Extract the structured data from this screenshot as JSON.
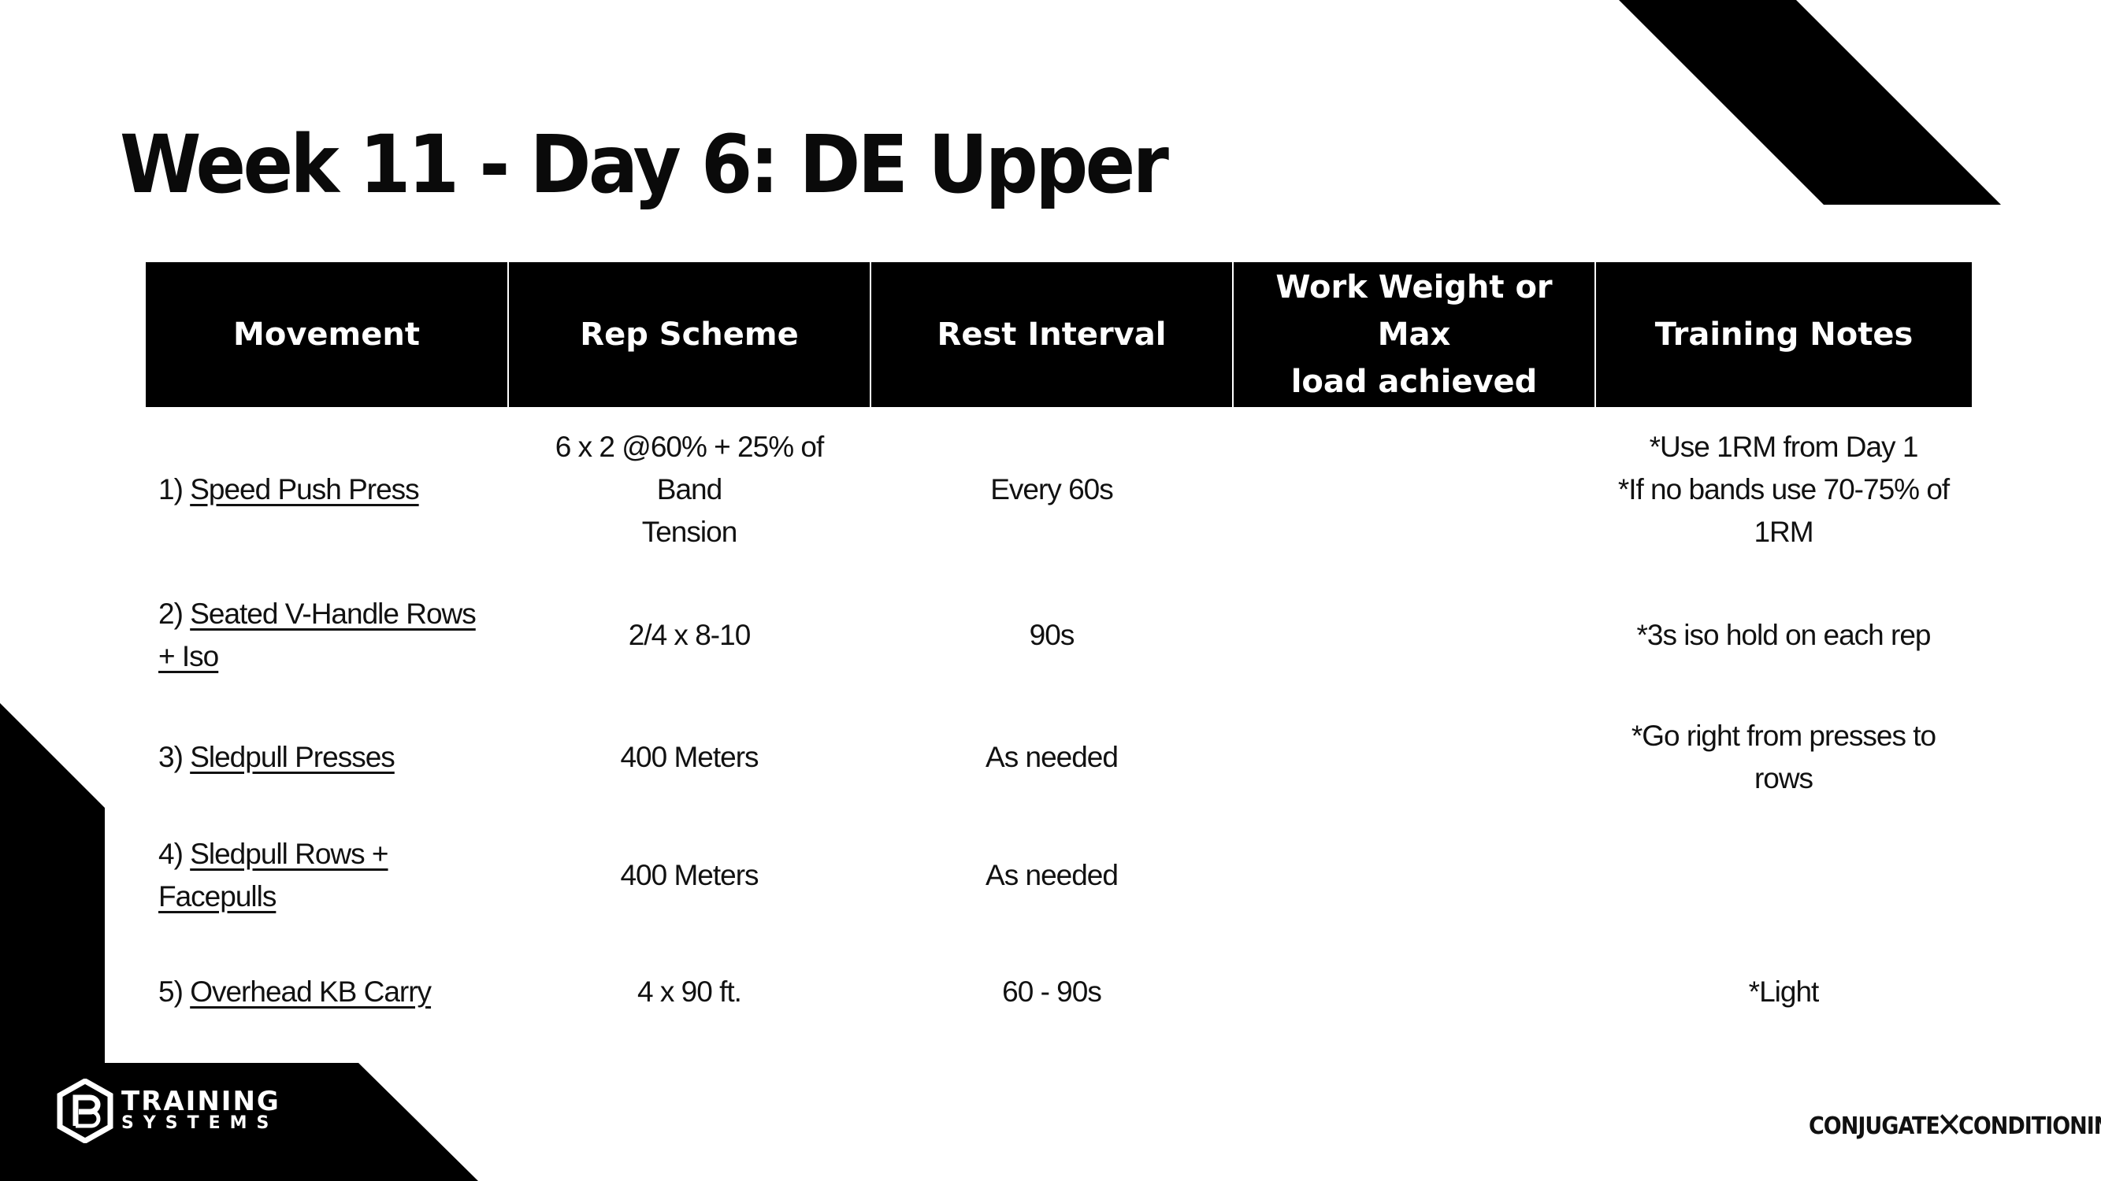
{
  "title": "Week 11 - Day 6: DE Upper",
  "table": {
    "headers": {
      "movement": "Movement",
      "rep_scheme": "Rep Scheme",
      "rest_interval": "Rest Interval",
      "work_weight_line1": "Work Weight or Max",
      "work_weight_line2": "load achieved",
      "training_notes": "Training Notes"
    },
    "rows": [
      {
        "num": "1)",
        "movement": "Speed Push Press",
        "rep_line1": "6 x 2 @60% + 25% of Band",
        "rep_line2": "Tension",
        "rest": "Every 60s",
        "weight": "",
        "note_line1": "*Use 1RM from Day 1",
        "note_line2": "*If no bands use 70-75% of 1RM"
      },
      {
        "num": "2)",
        "movement": "Seated V-Handle Rows + Iso",
        "rep_line1": "2/4 x 8-10",
        "rep_line2": "",
        "rest": "90s",
        "weight": "",
        "note_line1": "*3s iso hold on each rep",
        "note_line2": ""
      },
      {
        "num": "3)",
        "movement": "Sledpull Presses",
        "rep_line1": "400 Meters",
        "rep_line2": "",
        "rest": "As needed",
        "weight": "",
        "note_line1": "*Go right from presses to rows",
        "note_line2": ""
      },
      {
        "num": "4)",
        "movement": "Sledpull Rows + Facepulls",
        "rep_line1": "400 Meters",
        "rep_line2": "",
        "rest": "As needed",
        "weight": "",
        "note_line1": "",
        "note_line2": ""
      },
      {
        "num": "5)",
        "movement": "Overhead KB Carry",
        "rep_line1": "4 x 90 ft.",
        "rep_line2": "",
        "rest": "60 - 90s",
        "weight": "",
        "note_line1": "*Light",
        "note_line2": ""
      }
    ]
  },
  "brand_left": {
    "line1": "TRAINING",
    "line2": "SYSTEMS",
    "icon": "pb-hexagon-logo"
  },
  "brand_right": {
    "part1": "CONJUGATE",
    "part2": "CONDITIONING",
    "icon": "crossed-x-logo"
  },
  "colors": {
    "accent": "#000000",
    "background": "#ffffff",
    "text": "#111111"
  }
}
